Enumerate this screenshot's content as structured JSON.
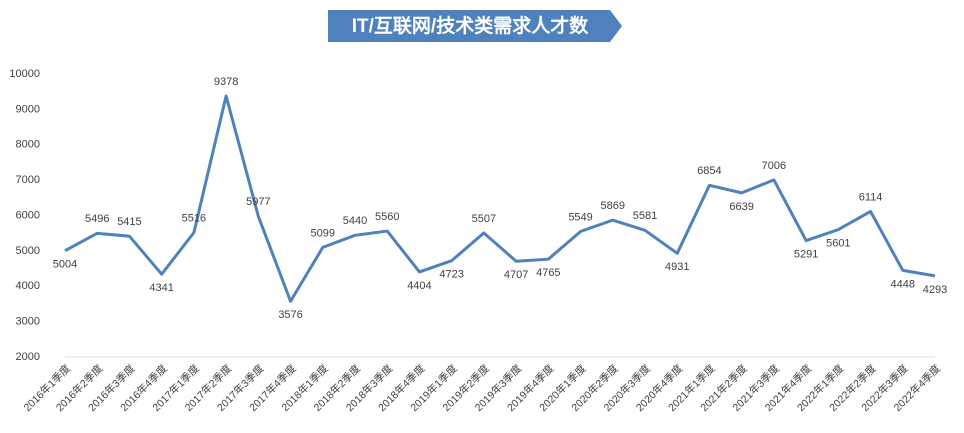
{
  "chart_data": {
    "type": "line",
    "title": "IT/互联网/技术类需求人才数",
    "categories": [
      "2016年1季度",
      "2016年2季度",
      "2016年3季度",
      "2016年4季度",
      "2017年1季度",
      "2017年2季度",
      "2017年3季度",
      "2017年4季度",
      "2018年1季度",
      "2018年2季度",
      "2018年3季度",
      "2018年4季度",
      "2019年1季度",
      "2019年2季度",
      "2019年3季度",
      "2019年4季度",
      "2020年1季度",
      "2020年2季度",
      "2020年3季度",
      "2020年4季度",
      "2021年1季度",
      "2021年2季度",
      "2021年3季度",
      "2021年4季度",
      "2022年1季度",
      "2022年2季度",
      "2022年3季度",
      "2022年4季度"
    ],
    "values": [
      5004,
      5496,
      5415,
      4341,
      5516,
      9378,
      5977,
      3576,
      5099,
      5440,
      5560,
      4404,
      4723,
      5507,
      4707,
      4765,
      5549,
      5869,
      5581,
      4931,
      6854,
      6639,
      7006,
      5291,
      5601,
      6114,
      4448,
      4293
    ],
    "color": "#4f81bd",
    "ylim": [
      2000,
      10000
    ],
    "yticks": [
      2000,
      3000,
      4000,
      5000,
      6000,
      7000,
      8000,
      9000,
      10000
    ],
    "grid": false
  }
}
